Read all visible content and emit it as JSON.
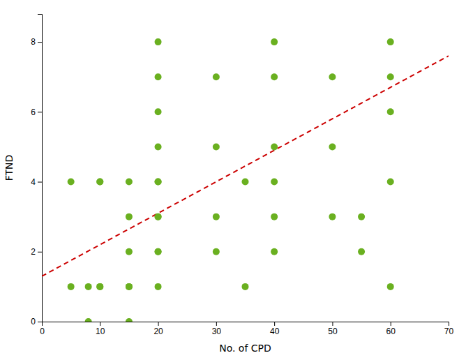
{
  "chart_data": {
    "type": "scatter",
    "xlabel": "No. of CPD",
    "ylabel": "FTND",
    "xlim": [
      0,
      70
    ],
    "ylim": [
      0,
      8.8
    ],
    "xticks": [
      0,
      10,
      20,
      30,
      40,
      50,
      60,
      70
    ],
    "yticks": [
      0,
      2,
      4,
      6,
      8
    ],
    "grid": false,
    "series": [
      {
        "type": "scatter",
        "color": "#6ab020",
        "x": [
          5,
          5,
          8,
          8,
          10,
          10,
          10,
          10,
          15,
          15,
          15,
          15,
          15,
          15,
          20,
          20,
          20,
          20,
          20,
          20,
          20,
          20,
          20,
          20,
          20,
          30,
          30,
          30,
          30,
          35,
          35,
          40,
          40,
          40,
          40,
          40,
          40,
          50,
          50,
          50,
          55,
          55,
          60,
          60,
          60,
          60,
          60
        ],
        "values": [
          4,
          1,
          1,
          0,
          4,
          4,
          1,
          1,
          4,
          3,
          2,
          1,
          1,
          0,
          8,
          7,
          6,
          5,
          4,
          4,
          3,
          3,
          2,
          2,
          1,
          7,
          5,
          3,
          2,
          4,
          1,
          8,
          7,
          5,
          4,
          3,
          2,
          7,
          5,
          3,
          3,
          2,
          8,
          7,
          6,
          4,
          1
        ]
      },
      {
        "type": "line",
        "color": "#cc0000",
        "line_style": "dashed",
        "x": [
          0,
          70
        ],
        "values": [
          1.3,
          7.6
        ]
      }
    ]
  }
}
